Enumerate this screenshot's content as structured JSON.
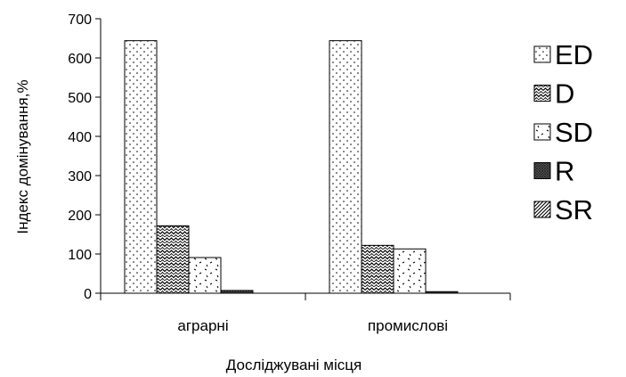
{
  "chart_data": {
    "type": "bar",
    "title": "",
    "xlabel": "Досліджувані місця",
    "ylabel": "Індекс домінування,%",
    "ylim": [
      0,
      700
    ],
    "yticks": [
      0,
      100,
      200,
      300,
      400,
      500,
      600,
      700
    ],
    "categories": [
      "аграрні",
      "промислові"
    ],
    "series": [
      {
        "name": "ED",
        "pattern": "dots",
        "values": [
          644,
          644
        ]
      },
      {
        "name": "D",
        "pattern": "waves",
        "values": [
          172,
          122
        ]
      },
      {
        "name": "SD",
        "pattern": "sparse-dots",
        "values": [
          91,
          113
        ]
      },
      {
        "name": "R",
        "pattern": "dense-grid",
        "values": [
          7,
          4
        ]
      },
      {
        "name": "SR",
        "pattern": "diagonal-stripes",
        "values": [
          0,
          0
        ]
      }
    ],
    "legend_position": "right",
    "grid": false
  }
}
